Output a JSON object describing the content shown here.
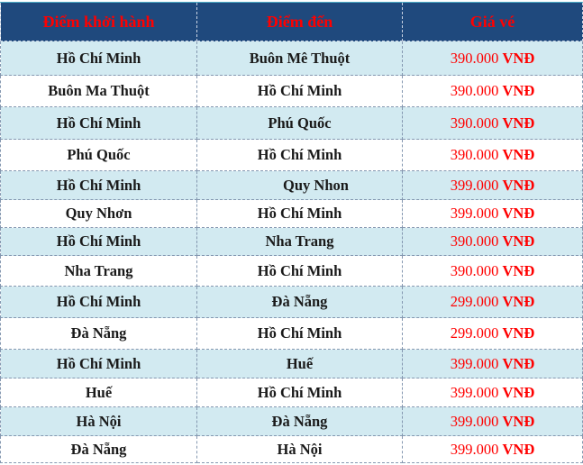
{
  "headers": [
    "Điểm khởi hành",
    "Điểm đến",
    "Giá vé"
  ],
  "currency": "VNĐ",
  "rows": [
    {
      "from": "Hồ Chí Minh",
      "to": "Buôn Mê Thuột",
      "price": "390.000"
    },
    {
      "from": "Buôn Ma Thuột",
      "to": "Hồ Chí Minh",
      "price": "390.000"
    },
    {
      "from": "Hồ Chí Minh",
      "to": "Phú Quốc",
      "price": "390.000"
    },
    {
      "from": "Phú Quốc",
      "to": "Hồ Chí Minh",
      "price": "390.000"
    },
    {
      "from": "Hồ Chí Minh",
      "to": "Quy Nhon",
      "price": "399.000"
    },
    {
      "from": "Quy Nhơn",
      "to": "Hồ Chí Minh",
      "price": "399.000"
    },
    {
      "from": "Hồ Chí Minh",
      "to": "Nha Trang",
      "price": "390.000"
    },
    {
      "from": "Nha Trang",
      "to": "Hồ Chí Minh",
      "price": "390.000"
    },
    {
      "from": "Hồ Chí Minh",
      "to": "Đà Nẵng",
      "price": "299.000"
    },
    {
      "from": "Đà Nẵng",
      "to": "Hồ Chí Minh",
      "price": "299.000"
    },
    {
      "from": "Hồ Chí Minh",
      "to": "Huế",
      "price": "399.000"
    },
    {
      "from": "Huế",
      "to": "Hồ Chí Minh",
      "price": "399.000"
    },
    {
      "from": "Hà Nội",
      "to": "Đà Nẵng",
      "price": "399.000"
    },
    {
      "from": "Đà Nẵng",
      "to": "Hà Nội",
      "price": "399.000"
    }
  ]
}
